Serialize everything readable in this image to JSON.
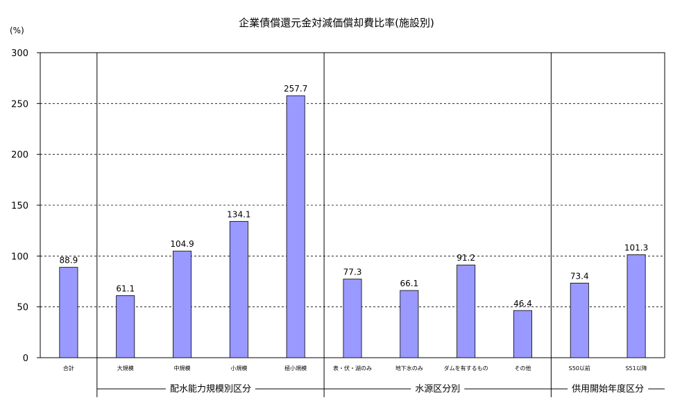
{
  "chart_data": {
    "type": "bar",
    "title": "企業債償還元金対減価償却費比率(施設別)",
    "unit_label": "(%)",
    "ylim": [
      0,
      300
    ],
    "yticks": [
      0,
      50,
      100,
      150,
      200,
      250,
      300
    ],
    "grid": true,
    "colors": {
      "bar": "#9999FF",
      "bar_stroke": "#000000",
      "grid": "#000000"
    },
    "categories": [
      "合計",
      "大規模",
      "中規模",
      "小規模",
      "極小規模",
      "表・伏・湖のみ",
      "地下水のみ",
      "ダムを有するもの",
      "その他",
      "S50以前",
      "S51以降"
    ],
    "values": [
      88.9,
      61.1,
      104.9,
      134.1,
      257.7,
      77.3,
      66.1,
      91.2,
      46.4,
      73.4,
      101.3
    ],
    "value_labels": [
      "88.9",
      "61.1",
      "104.9",
      "134.1",
      "257.7",
      "77.3",
      "66.1",
      "91.2",
      "46.4",
      "73.4",
      "101.3"
    ],
    "groups": [
      {
        "label": "配水能力規模別区分",
        "start": 1,
        "end": 4
      },
      {
        "label": "水源区分別",
        "start": 5,
        "end": 8
      },
      {
        "label": "供用開始年度区分",
        "start": 9,
        "end": 10
      }
    ]
  }
}
